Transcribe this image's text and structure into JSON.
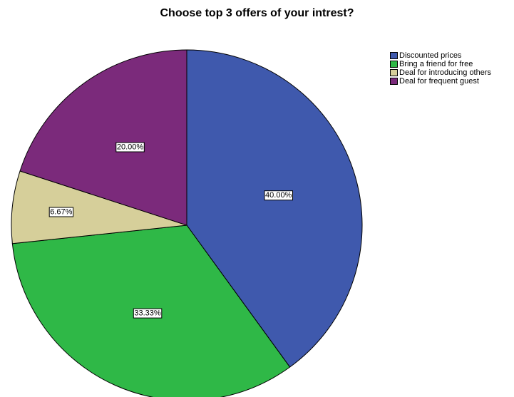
{
  "chart_data": {
    "type": "pie",
    "title": "Choose top 3 offers of your intrest?",
    "slices": [
      {
        "name": "Discounted prices",
        "value": 40.0,
        "label": "40.00%",
        "color": "#3f59ad"
      },
      {
        "name": "Bring a friend for free",
        "value": 33.33,
        "label": "33.33%",
        "color": "#2fb847"
      },
      {
        "name": "Deal for introducing others",
        "value": 6.67,
        "label": "6.67%",
        "color": "#d6cf9a"
      },
      {
        "name": "Deal for frequent guest",
        "value": 20.0,
        "label": "20.00%",
        "color": "#7b2a7b"
      }
    ],
    "start_angle_deg": 0,
    "direction": "clockwise",
    "legend_position": "top-right"
  }
}
